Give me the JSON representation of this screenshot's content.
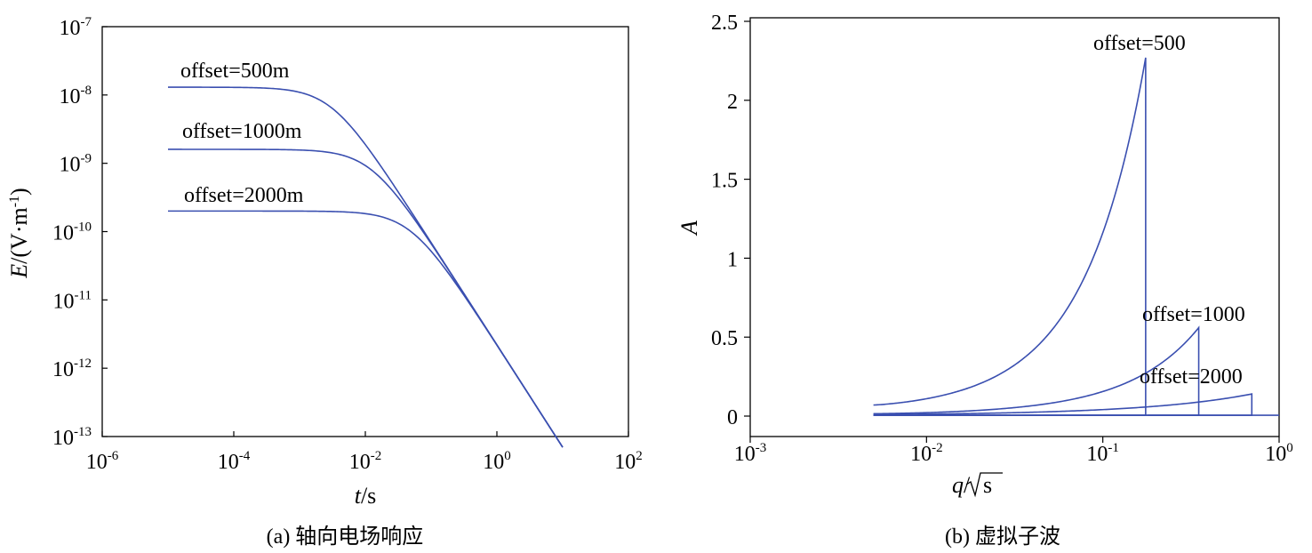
{
  "chart_data": [
    {
      "type": "line",
      "caption": "(a) 轴向电场响应",
      "xlabel": "t/s",
      "ylabel": "E/(V·m-1)",
      "xscale": "log",
      "yscale": "log",
      "xlim": [
        1e-06,
        100
      ],
      "ylim": [
        1e-13,
        1e-07
      ],
      "x_ticks": [
        {
          "base": "10",
          "exp": "-6",
          "value": 1e-06
        },
        {
          "base": "10",
          "exp": "-4",
          "value": 0.0001
        },
        {
          "base": "10",
          "exp": "-2",
          "value": 0.01
        },
        {
          "base": "10",
          "exp": "0",
          "value": 1
        },
        {
          "base": "10",
          "exp": "2",
          "value": 100
        }
      ],
      "y_ticks": [
        {
          "base": "10",
          "exp": "-13",
          "value": 1e-13
        },
        {
          "base": "10",
          "exp": "-12",
          "value": 1e-12
        },
        {
          "base": "10",
          "exp": "-11",
          "value": 1e-11
        },
        {
          "base": "10",
          "exp": "-10",
          "value": 1e-10
        },
        {
          "base": "10",
          "exp": "-9",
          "value": 1e-09
        },
        {
          "base": "10",
          "exp": "-8",
          "value": 1e-08
        },
        {
          "base": "10",
          "exp": "-7",
          "value": 1e-07
        }
      ],
      "series": [
        {
          "name": "offset=500m",
          "x_start": 1e-05,
          "x_end": 10,
          "plateau": 1.3e-08,
          "late_coef": 2.2e-12,
          "late_power": 1.5
        },
        {
          "name": "offset=1000m",
          "x_start": 1e-05,
          "x_end": 10,
          "plateau": 1.6e-09,
          "late_coef": 2.2e-12,
          "late_power": 1.5
        },
        {
          "name": "offset=2000m",
          "x_start": 1e-05,
          "x_end": 10,
          "plateau": 2e-10,
          "late_coef": 2.2e-12,
          "late_power": 1.5
        }
      ],
      "annotations": [
        "offset=500m",
        "offset=1000m",
        "offset=2000m"
      ]
    },
    {
      "type": "line",
      "caption": "(b) 虚拟子波",
      "xlabel": "q/√s",
      "ylabel": "A",
      "xscale": "log",
      "xlim": [
        0.001,
        1
      ],
      "ylim": [
        0,
        2.5
      ],
      "x_ticks": [
        {
          "base": "10",
          "exp": "-3",
          "value": 0.001
        },
        {
          "base": "10",
          "exp": "-2",
          "value": 0.01
        },
        {
          "base": "10",
          "exp": "-1",
          "value": 0.1
        },
        {
          "base": "10",
          "exp": "0",
          "value": 1
        }
      ],
      "y_ticks": [
        {
          "label": "0",
          "value": 0
        },
        {
          "label": "0.5",
          "value": 0.5
        },
        {
          "label": "1",
          "value": 1
        },
        {
          "label": "1.5",
          "value": 1.5
        },
        {
          "label": "2",
          "value": 2
        },
        {
          "label": "2.5",
          "value": 2.5
        }
      ],
      "series": [
        {
          "name": "offset=500",
          "x_start": 0.005,
          "y_start": 0.07,
          "x_peak": 0.175,
          "y_peak": 2.27
        },
        {
          "name": "offset=1000",
          "x_start": 0.005,
          "y_start": 0.015,
          "x_peak": 0.35,
          "y_peak": 0.56
        },
        {
          "name": "offset=2000",
          "x_start": 0.005,
          "y_start": 0.01,
          "x_peak": 0.7,
          "y_peak": 0.14
        }
      ],
      "baseline_y": 0.005,
      "annotations": [
        "offset=500",
        "offset=1000",
        "offset=2000"
      ]
    }
  ],
  "colors": {
    "curve": "#3a4fb0",
    "axis": "#000000"
  }
}
